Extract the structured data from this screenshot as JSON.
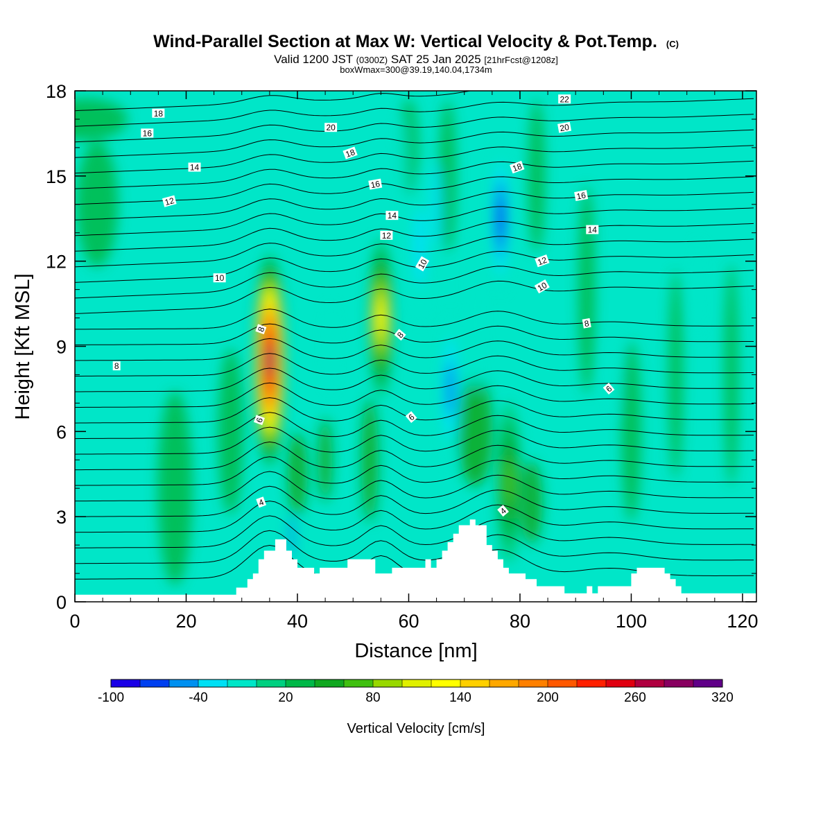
{
  "chart_data": {
    "type": "heatmap",
    "title": "Wind-Parallel Section at Max W: Vertical Velocity & Pot.Temp.",
    "title_mark": "(C)",
    "subtitle": {
      "valid": "Valid 1200 JST",
      "utc": "(0300Z)",
      "date": "SAT 25 Jan 2025",
      "fcst": "[21hrFcst@1208z]"
    },
    "subtitle2": "boxWmax=300@39.19,140.04,1734m",
    "xlabel": "Distance [nm]",
    "ylabel": "Height [Kft MSL]",
    "xlim": [
      0,
      122.5
    ],
    "ylim": [
      0,
      18
    ],
    "xticks": [
      0,
      20,
      40,
      60,
      80,
      100,
      120
    ],
    "yticks": [
      0,
      3,
      6,
      9,
      12,
      15,
      18
    ],
    "colorbar": {
      "label": "Vertical Velocity [cm/s]",
      "tick_labels": [
        "-100",
        "-40",
        "20",
        "80",
        "140",
        "200",
        "260",
        "320"
      ],
      "bounds": [
        -100,
        320
      ],
      "step": 20,
      "colors": [
        "#1a00e6",
        "#0040f0",
        "#0090f0",
        "#00e0f5",
        "#00e6c8",
        "#00d080",
        "#00b848",
        "#10a820",
        "#40c010",
        "#98d800",
        "#e0f000",
        "#ffff00",
        "#ffd000",
        "#ffa800",
        "#ff8000",
        "#ff5800",
        "#ff2000",
        "#e00010",
        "#b00040",
        "#880060",
        "#600088"
      ]
    },
    "velocity_cores": [
      {
        "x": 35,
        "z": 8.5,
        "w": 300
      },
      {
        "x": 55,
        "z": 10.0,
        "w": 140
      },
      {
        "x": 76.5,
        "z": 13.5,
        "w": -80
      },
      {
        "x": 78,
        "z": 4.2,
        "w": 80
      },
      {
        "x": 67.5,
        "z": 7.5,
        "w": -50
      },
      {
        "x": 62,
        "z": 12.5,
        "w": -40
      }
    ],
    "terrain": [
      [
        0,
        0.25
      ],
      [
        29,
        0.25
      ],
      [
        29,
        0.5
      ],
      [
        31,
        0.5
      ],
      [
        31,
        0.8
      ],
      [
        32,
        0.8
      ],
      [
        32,
        1.0
      ],
      [
        33,
        1.0
      ],
      [
        33,
        1.5
      ],
      [
        34,
        1.5
      ],
      [
        34,
        1.8
      ],
      [
        36,
        1.8
      ],
      [
        36,
        2.2
      ],
      [
        38,
        2.2
      ],
      [
        38,
        1.8
      ],
      [
        39,
        1.8
      ],
      [
        39,
        1.5
      ],
      [
        40,
        1.5
      ],
      [
        40,
        1.2
      ],
      [
        43,
        1.2
      ],
      [
        43,
        1.0
      ],
      [
        44,
        1.0
      ],
      [
        44,
        1.2
      ],
      [
        49,
        1.2
      ],
      [
        49,
        1.5
      ],
      [
        54,
        1.5
      ],
      [
        54,
        1.0
      ],
      [
        57,
        1.0
      ],
      [
        57,
        1.2
      ],
      [
        63,
        1.2
      ],
      [
        63,
        1.5
      ],
      [
        64,
        1.5
      ],
      [
        64,
        1.2
      ],
      [
        65,
        1.2
      ],
      [
        65,
        1.5
      ],
      [
        66,
        1.5
      ],
      [
        66,
        1.8
      ],
      [
        67,
        1.8
      ],
      [
        67,
        2.1
      ],
      [
        68,
        2.1
      ],
      [
        68,
        2.4
      ],
      [
        69,
        2.4
      ],
      [
        69,
        2.7
      ],
      [
        71,
        2.7
      ],
      [
        71,
        2.9
      ],
      [
        72,
        2.9
      ],
      [
        72,
        2.7
      ],
      [
        74,
        2.7
      ],
      [
        74,
        2.5
      ],
      [
        74,
        2.0
      ],
      [
        75,
        2.0
      ],
      [
        75,
        1.8
      ],
      [
        76,
        1.8
      ],
      [
        76,
        1.5
      ],
      [
        77,
        1.5
      ],
      [
        77,
        1.2
      ],
      [
        78,
        1.2
      ],
      [
        78,
        1.0
      ],
      [
        81,
        1.0
      ],
      [
        81,
        0.8
      ],
      [
        83,
        0.8
      ],
      [
        83,
        0.55
      ],
      [
        88,
        0.55
      ],
      [
        88,
        0.3
      ],
      [
        92,
        0.3
      ],
      [
        92,
        0.55
      ],
      [
        93,
        0.55
      ],
      [
        93,
        0.3
      ],
      [
        94,
        0.3
      ],
      [
        94,
        0.55
      ],
      [
        100,
        0.55
      ],
      [
        100,
        1.0
      ],
      [
        101,
        1.0
      ],
      [
        101,
        1.2
      ],
      [
        106,
        1.2
      ],
      [
        106,
        1.0
      ],
      [
        107,
        1.0
      ],
      [
        107,
        0.8
      ],
      [
        108,
        0.8
      ],
      [
        108,
        0.55
      ],
      [
        109,
        0.55
      ],
      [
        109,
        0.3
      ],
      [
        122.5,
        0.3
      ]
    ],
    "isentrope_labels": [
      {
        "text": "18",
        "x": 15,
        "z": 17.2,
        "rot": 0
      },
      {
        "text": "16",
        "x": 13,
        "z": 16.5,
        "rot": 0
      },
      {
        "text": "14",
        "x": 21.5,
        "z": 15.3,
        "rot": 0
      },
      {
        "text": "12",
        "x": 17,
        "z": 14.1,
        "rot": -15
      },
      {
        "text": "10",
        "x": 26,
        "z": 11.4,
        "rot": 0
      },
      {
        "text": "8",
        "x": 7.5,
        "z": 8.3,
        "rot": 0
      },
      {
        "text": "8",
        "x": 33.5,
        "z": 9.6,
        "rot": -70
      },
      {
        "text": "6",
        "x": 33.2,
        "z": 6.4,
        "rot": -70
      },
      {
        "text": "4",
        "x": 33.5,
        "z": 3.5,
        "rot": -20
      },
      {
        "text": "20",
        "x": 46,
        "z": 16.7,
        "rot": 0
      },
      {
        "text": "18",
        "x": 49.5,
        "z": 15.8,
        "rot": -20
      },
      {
        "text": "16",
        "x": 54,
        "z": 14.7,
        "rot": -10
      },
      {
        "text": "14",
        "x": 57,
        "z": 13.6,
        "rot": 0
      },
      {
        "text": "12",
        "x": 56,
        "z": 12.9,
        "rot": 0
      },
      {
        "text": "10",
        "x": 62.5,
        "z": 11.9,
        "rot": -60
      },
      {
        "text": "8",
        "x": 58.5,
        "z": 9.4,
        "rot": -50
      },
      {
        "text": "6",
        "x": 60.5,
        "z": 6.5,
        "rot": -40
      },
      {
        "text": "4",
        "x": 77,
        "z": 3.2,
        "rot": -40
      },
      {
        "text": "22",
        "x": 88,
        "z": 17.7,
        "rot": 0
      },
      {
        "text": "20",
        "x": 88,
        "z": 16.7,
        "rot": -10
      },
      {
        "text": "18",
        "x": 79.5,
        "z": 15.3,
        "rot": -20
      },
      {
        "text": "16",
        "x": 91,
        "z": 14.3,
        "rot": -10
      },
      {
        "text": "14",
        "x": 93,
        "z": 13.1,
        "rot": 0
      },
      {
        "text": "12",
        "x": 84,
        "z": 12.0,
        "rot": -20
      },
      {
        "text": "10",
        "x": 84,
        "z": 11.1,
        "rot": -30
      },
      {
        "text": "8",
        "x": 92,
        "z": 9.8,
        "rot": -10
      },
      {
        "text": "6",
        "x": 96,
        "z": 7.5,
        "rot": -40
      }
    ]
  }
}
